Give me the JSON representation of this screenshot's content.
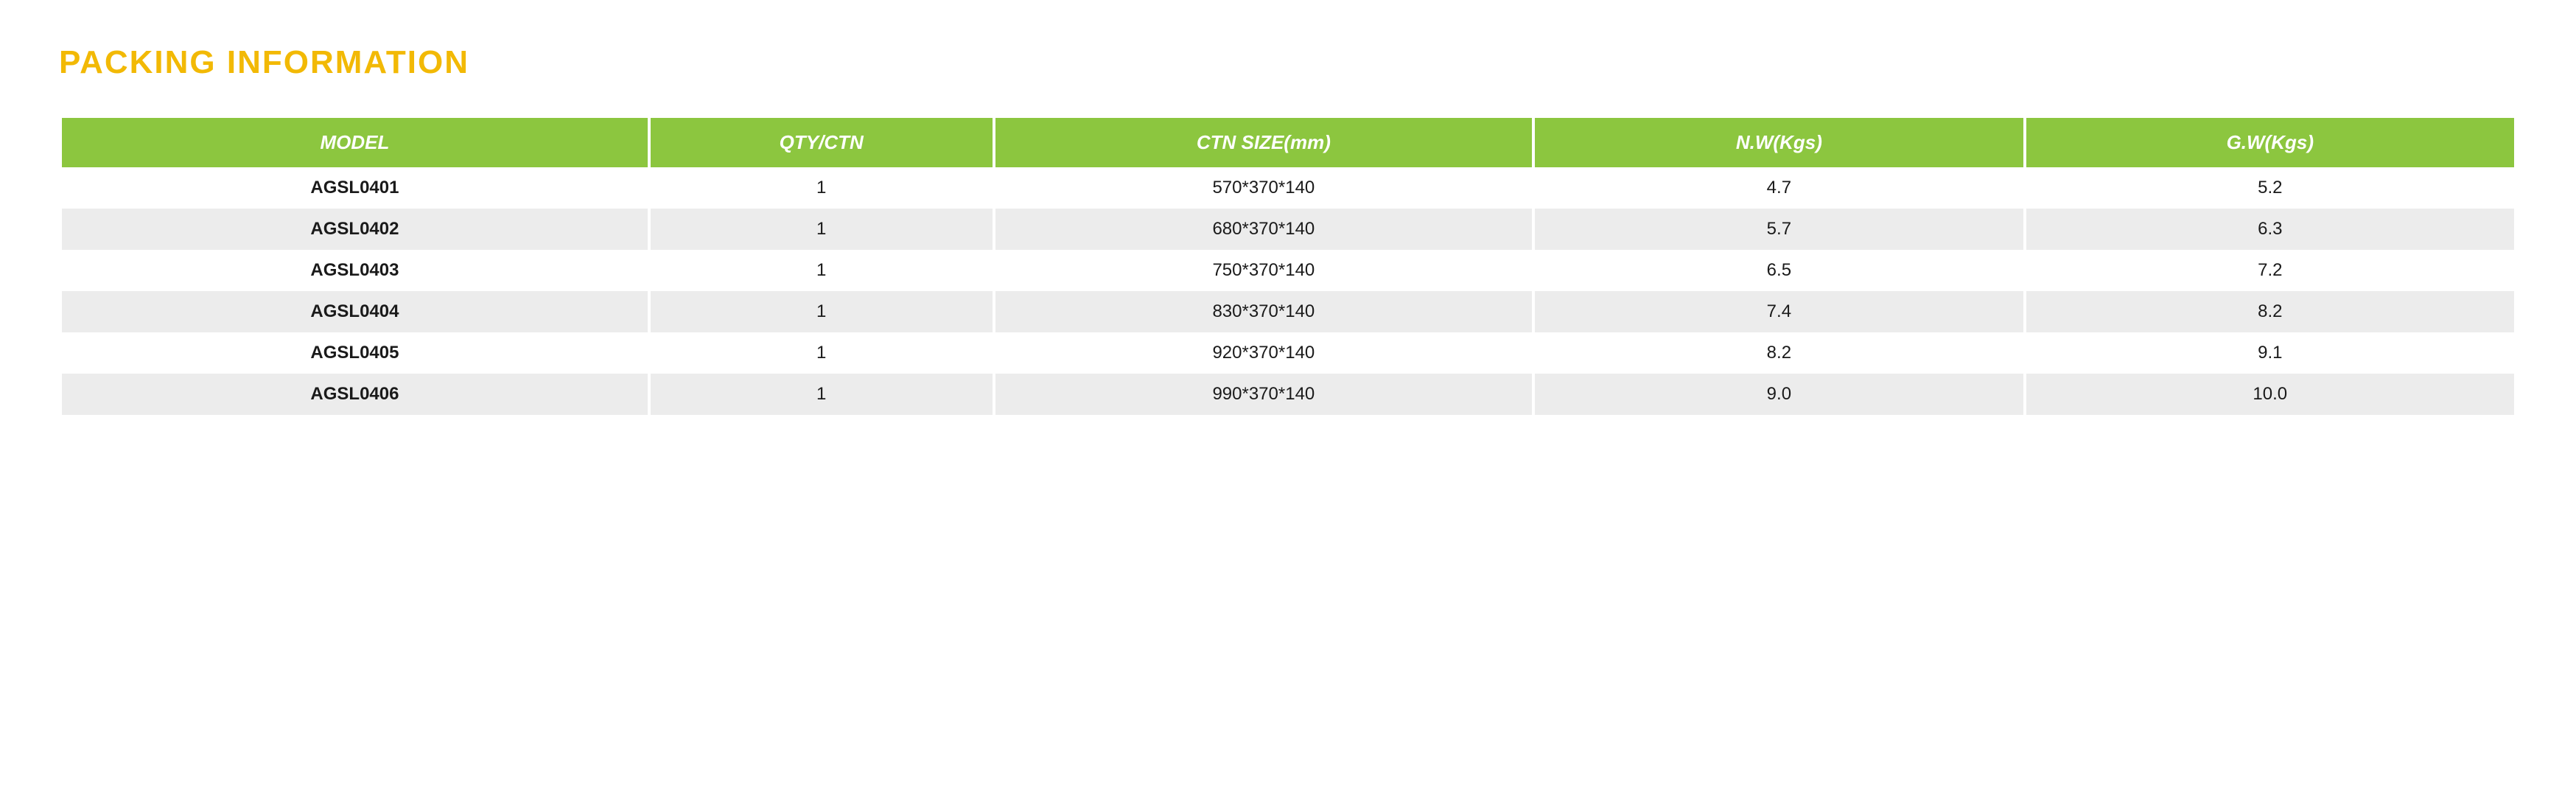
{
  "title": "PACKING INFORMATION",
  "colors": {
    "title": "#f2b905",
    "header_bg": "#8cc63f",
    "header_text": "#ffffff",
    "row_odd_bg": "#ffffff",
    "row_even_bg": "#ececec",
    "cell_text": "#1a1a1a"
  },
  "table": {
    "columns": [
      "MODEL",
      "QTY/CTN",
      "CTN SIZE(mm)",
      "N.W(Kgs)",
      "G.W(Kgs)"
    ],
    "column_widths": [
      "24%",
      "14%",
      "22%",
      "20%",
      "20%"
    ],
    "rows": [
      [
        "AGSL0401",
        "1",
        "570*370*140",
        "4.7",
        "5.2"
      ],
      [
        "AGSL0402",
        "1",
        "680*370*140",
        "5.7",
        "6.3"
      ],
      [
        "AGSL0403",
        "1",
        "750*370*140",
        "6.5",
        "7.2"
      ],
      [
        "AGSL0404",
        "1",
        "830*370*140",
        "7.4",
        "8.2"
      ],
      [
        "AGSL0405",
        "1",
        "920*370*140",
        "8.2",
        "9.1"
      ],
      [
        "AGSL0406",
        "1",
        "990*370*140",
        "9.0",
        "10.0"
      ]
    ]
  }
}
